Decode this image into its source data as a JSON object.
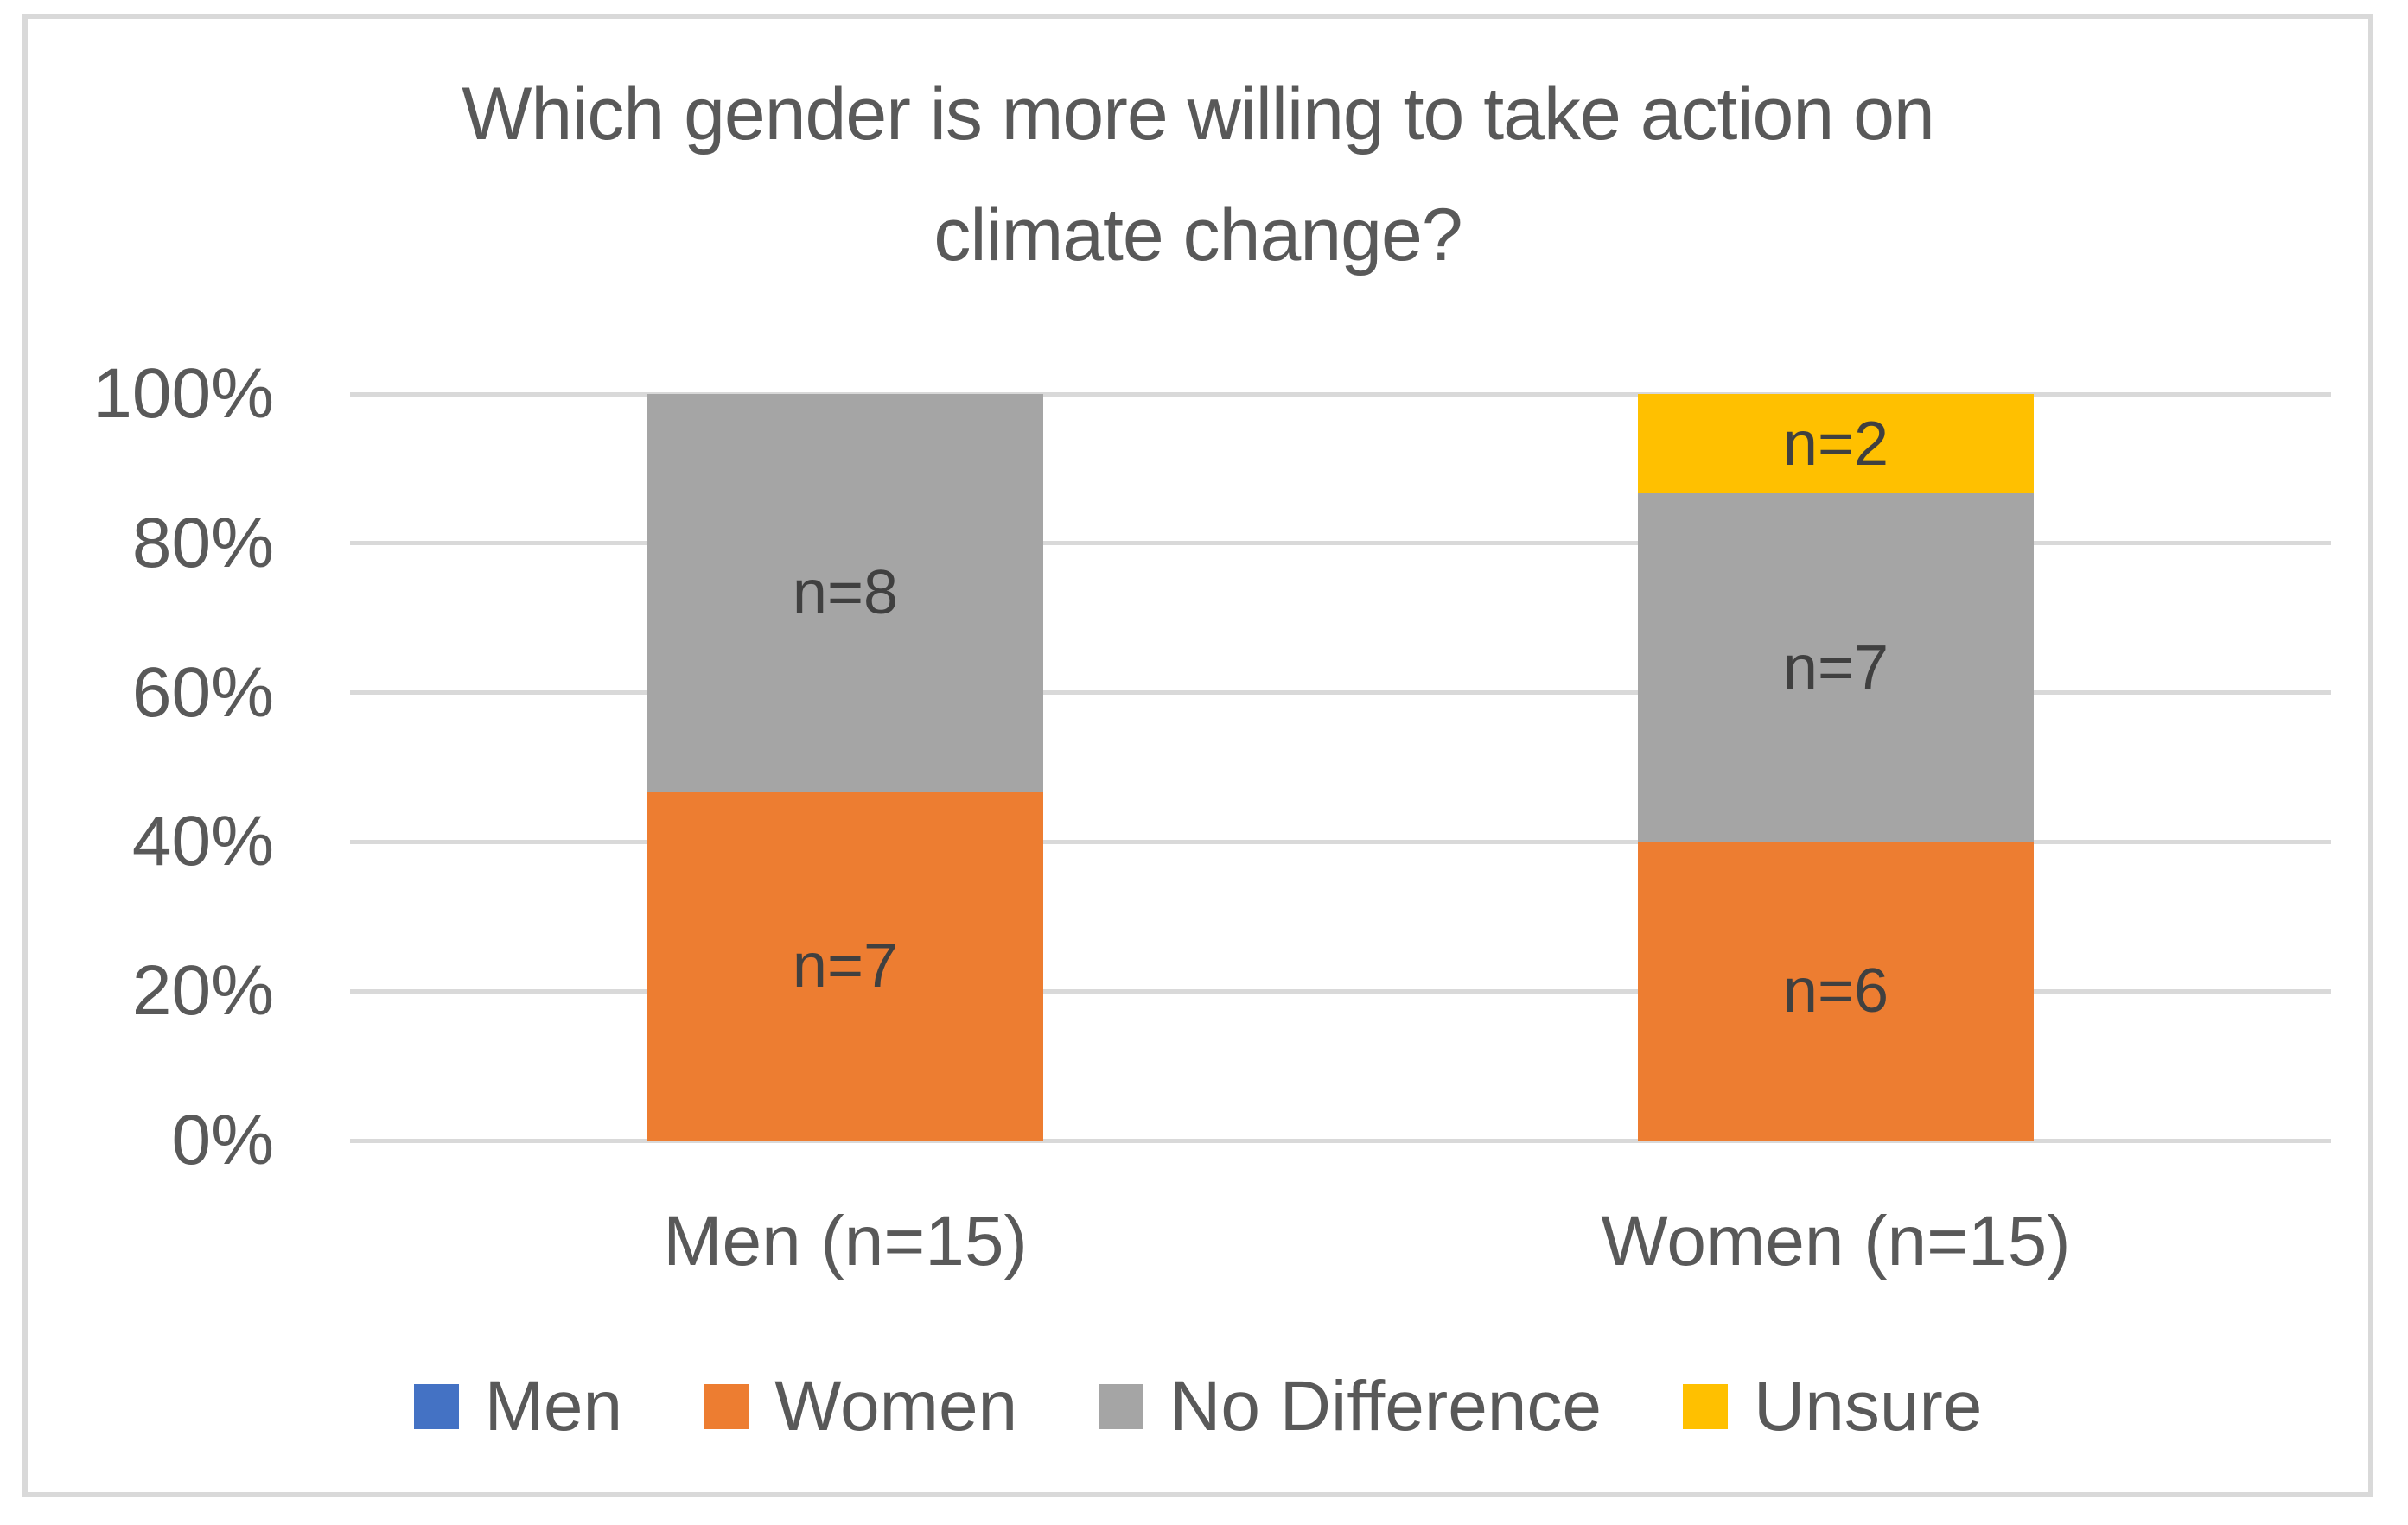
{
  "figure": {
    "background_color": "#FFFFFF",
    "border_color": "#D9D9D9"
  },
  "chart_data": {
    "type": "bar",
    "subtype": "stacked-100-percent-column",
    "title": "Which gender is more willing to take action on climate change?",
    "title_lines": [
      "Which gender is more willing to take action on",
      "climate change?"
    ],
    "categories": [
      "Men (n=15)",
      "Women (n=15)"
    ],
    "category_totals": [
      15,
      15
    ],
    "series": [
      {
        "name": "Men",
        "color": "#4472C4",
        "values": [
          0,
          0
        ],
        "labels": [
          "",
          ""
        ]
      },
      {
        "name": "Women",
        "color": "#ED7D31",
        "values": [
          7,
          6
        ],
        "labels": [
          "n=7",
          "n=6"
        ]
      },
      {
        "name": "No Difference",
        "color": "#A5A5A5",
        "values": [
          8,
          7
        ],
        "labels": [
          "n=8",
          "n=7"
        ]
      },
      {
        "name": "Unsure",
        "color": "#FFC000",
        "values": [
          0,
          2
        ],
        "labels": [
          "",
          "n=2"
        ]
      }
    ],
    "data_label_prefix": "n=",
    "xlabel": "",
    "ylabel": "",
    "ylim": [
      0,
      100
    ],
    "y_ticks": [
      "0%",
      "20%",
      "40%",
      "60%",
      "80%",
      "100%"
    ],
    "grid": "horizontal",
    "gridline_color": "#D9D9D9",
    "legend_position": "bottom",
    "legend": [
      "Men",
      "Women",
      "No Difference",
      "Unsure"
    ],
    "text_colors": {
      "title": "#595959",
      "axis": "#595959",
      "data_label": "#404040"
    }
  }
}
